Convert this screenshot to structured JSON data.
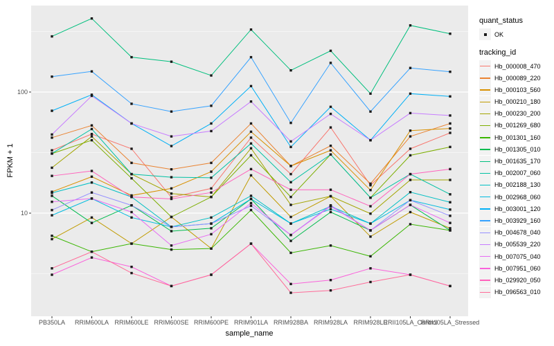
{
  "figure": {
    "y_axis_title": "FPKM + 1",
    "x_axis_title": "sample_name",
    "legend": {
      "quant_status_title": "quant_status",
      "ok_label": "OK",
      "tracking_id_title": "tracking_id"
    }
  },
  "chart_data": {
    "type": "line",
    "title": "",
    "xlabel": "sample_name",
    "ylabel": "FPKM + 1",
    "y_scale": "log10",
    "y_major_ticks": [
      10,
      100
    ],
    "y_minor_gridlines": [
      3.162,
      31.62,
      316.2
    ],
    "ylim": [
      1.4,
      520
    ],
    "legend_position": "right",
    "quant_status_value": "OK",
    "point_shape": "small-black-square",
    "panel_background": "#EBEBEB",
    "gridline_color": "#FFFFFF",
    "categories": [
      "PB350LA",
      "RRIM600LA",
      "RRIM600LE",
      "RRIM600SE",
      "RRIM600PE",
      "RRIM901LA",
      "RRIM928BA",
      "RRIM928LA",
      "RRIM928LE",
      "RRII105LA_Control",
      "RRII105LA_Stressed"
    ],
    "series": [
      {
        "name": "Hb_000008_470",
        "color": "#F8766D",
        "values": [
          33,
          45,
          34,
          13.5,
          16,
          42,
          21,
          51,
          17,
          34,
          46
        ]
      },
      {
        "name": "Hb_000089_220",
        "color": "#EA8331",
        "values": [
          42,
          53,
          26,
          23,
          26,
          55,
          24.5,
          36,
          17.5,
          43,
          55
        ]
      },
      {
        "name": "Hb_000103_560",
        "color": "#D89000",
        "values": [
          15,
          20,
          14,
          16,
          22,
          47,
          24.5,
          33,
          15.5,
          48,
          50
        ]
      },
      {
        "name": "Hb_000210_180",
        "color": "#C09B00",
        "values": [
          6.1,
          9.2,
          5.6,
          9.3,
          5.1,
          20.5,
          9.3,
          13.8,
          6.4,
          10.2,
          7.5
        ]
      },
      {
        "name": "Hb_000230_200",
        "color": "#A3A500",
        "values": [
          23.7,
          43,
          21,
          14.5,
          13.6,
          34.3,
          11.7,
          13.8,
          9.9,
          18.8,
          18.8
        ]
      },
      {
        "name": "Hb_001269_680",
        "color": "#7CAE00",
        "values": [
          31,
          40,
          19.4,
          9.3,
          13.6,
          30,
          13.6,
          30.5,
          13.4,
          30,
          35.2
        ]
      },
      {
        "name": "Hb_001301_160",
        "color": "#39B600",
        "values": [
          6.5,
          4.8,
          5.6,
          5.0,
          5.1,
          10.6,
          4.7,
          5.4,
          4.4,
          8.1,
          7.2
        ]
      },
      {
        "name": "Hb_001305_010",
        "color": "#00BB4E",
        "values": [
          13.9,
          8.3,
          11.6,
          7.1,
          7.5,
          13.1,
          5.9,
          10.2,
          7.2,
          11.7,
          7.2
        ]
      },
      {
        "name": "Hb_001635_170",
        "color": "#00BF7D",
        "values": [
          288,
          405,
          194,
          178,
          137,
          328,
          151,
          219,
          97,
          355,
          303
        ]
      },
      {
        "name": "Hb_002007_060",
        "color": "#00C1A3",
        "values": [
          31.1,
          49.5,
          21,
          19.8,
          19.6,
          37.6,
          18,
          30.5,
          13.4,
          21,
          14.3
        ]
      },
      {
        "name": "Hb_002188_130",
        "color": "#00BFC4",
        "values": [
          14.7,
          17.9,
          13.6,
          7.7,
          9.2,
          13.9,
          8.2,
          11.4,
          8.2,
          14.9,
          12.3
        ]
      },
      {
        "name": "Hb_002968_060",
        "color": "#00BAE0",
        "values": [
          9.6,
          13.2,
          9.2,
          7.7,
          8.2,
          13.1,
          8.2,
          10.8,
          8.2,
          12.8,
          10.7
        ]
      },
      {
        "name": "Hb_003001_120",
        "color": "#00B0F6",
        "values": [
          70,
          95,
          55,
          35.8,
          55,
          112,
          35.2,
          75.5,
          40,
          97,
          92
        ]
      },
      {
        "name": "Hb_003929_160",
        "color": "#35A2FF",
        "values": [
          134,
          148,
          80,
          69,
          77,
          194,
          55.6,
          174,
          69,
          158,
          147
        ]
      },
      {
        "name": "Hb_004678_040",
        "color": "#9590FF",
        "values": [
          10.6,
          14.8,
          11.6,
          7.7,
          8.2,
          11.5,
          6.6,
          11.6,
          7.2,
          12.8,
          9.5
        ]
      },
      {
        "name": "Hb_005539_220",
        "color": "#C77CFF",
        "values": [
          44.6,
          93,
          55,
          43,
          47.6,
          83.5,
          39.1,
          66,
          40,
          67,
          64
        ]
      },
      {
        "name": "Hb_007075_040",
        "color": "#E76BF3",
        "values": [
          12.4,
          13.2,
          10.2,
          5.4,
          6.7,
          12.1,
          6.6,
          11.4,
          7.2,
          11.7,
          8.3
        ]
      },
      {
        "name": "Hb_007951_060",
        "color": "#FA62DB",
        "values": [
          3.1,
          4.3,
          3.6,
          2.5,
          3.1,
          5.6,
          2.6,
          2.8,
          3.5,
          3.1,
          2.5
        ]
      },
      {
        "name": "Hb_029920_050",
        "color": "#FF62BC",
        "values": [
          20.3,
          22.3,
          13.6,
          13.1,
          14.8,
          23.1,
          15.6,
          15.6,
          11.4,
          21,
          23.1
        ]
      },
      {
        "name": "Hb_096563_010",
        "color": "#FF6A98",
        "values": [
          3.5,
          4.8,
          3.2,
          2.5,
          3.1,
          5.6,
          2.2,
          2.3,
          2.7,
          3.1,
          2.5
        ]
      }
    ]
  }
}
